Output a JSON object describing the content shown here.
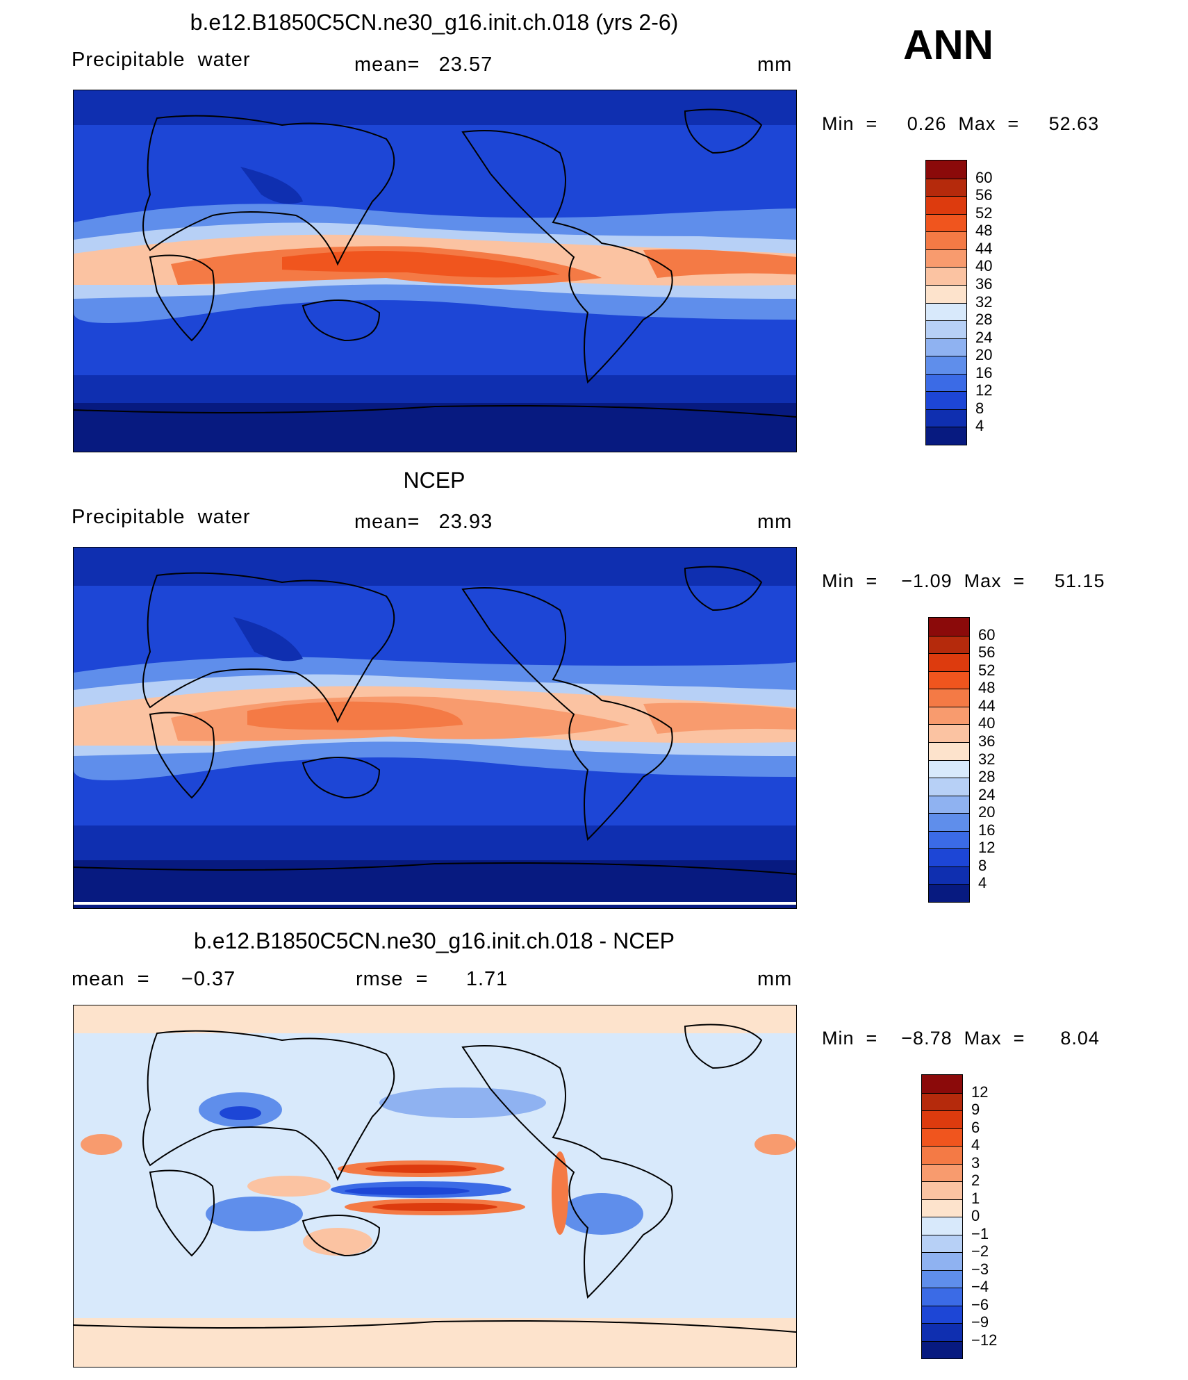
{
  "season_label": "ANN",
  "panels": [
    {
      "title": "b.e12.B1850C5CN.ne30_g16.init.ch.018 (yrs 2-6)",
      "left_label": "Precipitable  water",
      "center_label": "mean=   23.57",
      "units": "mm",
      "min_max": "Min  =     0.26  Max  =     52.63",
      "colorbar": {
        "labels": [
          "60",
          "56",
          "52",
          "48",
          "44",
          "40",
          "36",
          "32",
          "28",
          "24",
          "20",
          "16",
          "12",
          "8",
          "4"
        ],
        "colors": [
          "#8b0a0a",
          "#b52a0c",
          "#dd3b0e",
          "#f0551e",
          "#f47a45",
          "#f89b6e",
          "#fbc3a2",
          "#fde3cc",
          "#d8e9fb",
          "#b7d0f6",
          "#8fb2f1",
          "#5f8eeb",
          "#3b6be6",
          "#1d46d6",
          "#0f2fb0",
          "#071a80"
        ]
      }
    },
    {
      "title": "NCEP",
      "left_label": "Precipitable  water",
      "center_label": "mean=   23.93",
      "units": "mm",
      "min_max": "Min  =    −1.09  Max  =     51.15",
      "colorbar": {
        "labels": [
          "60",
          "56",
          "52",
          "48",
          "44",
          "40",
          "36",
          "32",
          "28",
          "24",
          "20",
          "16",
          "12",
          "8",
          "4"
        ],
        "colors": [
          "#8b0a0a",
          "#b52a0c",
          "#dd3b0e",
          "#f0551e",
          "#f47a45",
          "#f89b6e",
          "#fbc3a2",
          "#fde3cc",
          "#d8e9fb",
          "#b7d0f6",
          "#8fb2f1",
          "#5f8eeb",
          "#3b6be6",
          "#1d46d6",
          "#0f2fb0",
          "#071a80"
        ]
      }
    },
    {
      "title": "b.e12.B1850C5CN.ne30_g16.init.ch.018 - NCEP",
      "left_label": "mean  =     −0.37",
      "center_label": "rmse  =      1.71",
      "units": "mm",
      "min_max": "Min  =    −8.78  Max  =      8.04",
      "colorbar": {
        "labels": [
          "12",
          "9",
          "6",
          "4",
          "3",
          "2",
          "1",
          "0",
          "−1",
          "−2",
          "−3",
          "−4",
          "−6",
          "−9",
          "−12"
        ],
        "colors": [
          "#8b0a0a",
          "#b52a0c",
          "#dd3b0e",
          "#f0551e",
          "#f47a45",
          "#f89b6e",
          "#fbc3a2",
          "#fde3cc",
          "#d8e9fb",
          "#b7d0f6",
          "#8fb2f1",
          "#5f8eeb",
          "#3b6be6",
          "#1d46d6",
          "#0f2fb0",
          "#071a80"
        ]
      }
    }
  ]
}
